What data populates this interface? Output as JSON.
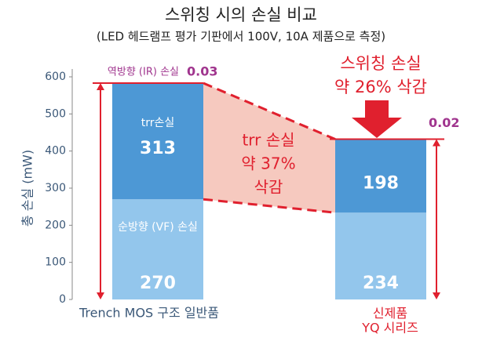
{
  "chart_data": {
    "type": "stacked-bar",
    "title": "스위칭 시의 손실 비교",
    "subtitle": "(LED 헤드램프 평가 기판에서 100V, 10A 제품으로 측정)",
    "y_label": "총 손실 (mW)",
    "categories": [
      "Trench MOS 구조 일반품",
      "신제품\nYQ 시리즈"
    ],
    "category_colors": [
      "#3b5878",
      "#e0202e"
    ],
    "series": [
      {
        "name": "순방향 (VF) 손실",
        "color": "#93c6ec",
        "values": [
          270,
          234
        ]
      },
      {
        "name": "trr손실",
        "color": "#4d98d5",
        "values": [
          313,
          198
        ]
      },
      {
        "name": "역방향 (IR) 손실",
        "color": "#a0358e",
        "values": [
          0.03,
          0.02
        ]
      }
    ],
    "ylim": [
      0,
      600
    ],
    "yticks": [
      0,
      100,
      200,
      300,
      400,
      500,
      600
    ],
    "annotations": {
      "switching": [
        "스위칭 손실",
        "약 26% 삭감"
      ],
      "trr": [
        "trr 손실",
        "약 37%",
        "삭감"
      ]
    }
  }
}
